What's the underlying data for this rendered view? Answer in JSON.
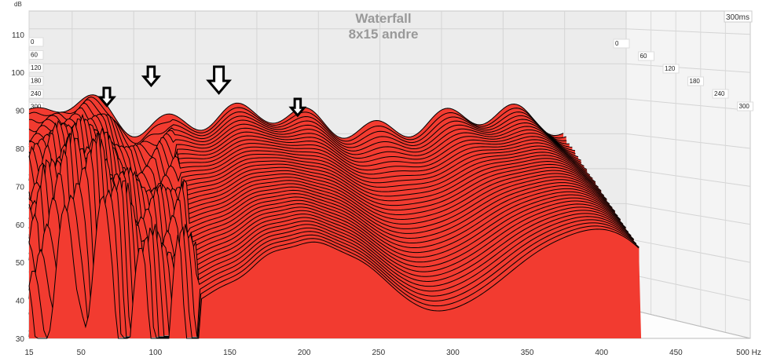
{
  "chart_data": {
    "type": "waterfall",
    "title": "Waterfall",
    "subtitle": "8x15 andre",
    "ylabel": "dB",
    "xunit": "Hz",
    "xlim": [
      15,
      500
    ],
    "ylim": [
      30,
      115
    ],
    "x_ticks": [
      "15",
      "50",
      "100",
      "150",
      "200",
      "250",
      "300",
      "350",
      "400",
      "450",
      "500 Hz"
    ],
    "x_tick_values": [
      15,
      50,
      100,
      150,
      200,
      250,
      300,
      350,
      400,
      450,
      500
    ],
    "y_ticks": [
      "110",
      "100",
      "90",
      "80",
      "70",
      "60",
      "50",
      "40",
      "30"
    ],
    "y_tick_values": [
      110,
      100,
      90,
      80,
      70,
      60,
      50,
      40,
      30
    ],
    "time_range_label": "300ms",
    "time_slices": [
      "0",
      "60",
      "120",
      "180",
      "240",
      "300"
    ],
    "slice_count": 40,
    "start_level_db": 84,
    "modes_hz": [
      28,
      42,
      58,
      72,
      85,
      120,
      145,
      175,
      205,
      235,
      262,
      300,
      330,
      360,
      395,
      430
    ],
    "annotations": [
      {
        "type": "arrow-down",
        "freq_hz": 82
      },
      {
        "type": "arrow-down",
        "freq_hz": 118
      },
      {
        "type": "arrow-down",
        "freq_hz": 173
      },
      {
        "type": "arrow-down",
        "freq_hz": 237
      }
    ],
    "colors": {
      "fill": "#f23b30",
      "line": "#000000",
      "grid": "#cfcfcf"
    }
  }
}
